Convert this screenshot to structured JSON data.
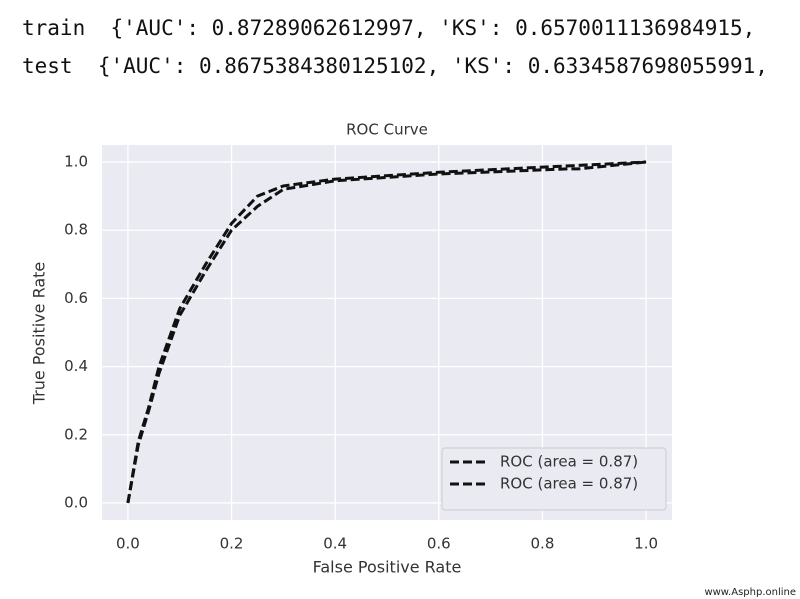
{
  "output_lines": [
    "train  {'AUC': 0.87289062612997, 'KS': 0.6570011136984915,",
    "test  {'AUC': 0.8675384380125102, 'KS': 0.6334587698055991,"
  ],
  "watermark": "www.Asphp.online",
  "chart_data": {
    "type": "line",
    "title": "ROC Curve",
    "xlabel": "False Positive Rate",
    "ylabel": "True Positive Rate",
    "xlim": [
      -0.05,
      1.05
    ],
    "ylim": [
      -0.05,
      1.05
    ],
    "xticks": [
      {
        "value": 0,
        "label": "0.0"
      },
      0.2,
      0.4,
      0.6,
      0.8,
      {
        "value": 1,
        "label": "1.0"
      }
    ],
    "yticks": [
      {
        "value": 0,
        "label": "0.0"
      },
      0.2,
      0.4,
      0.6,
      0.8,
      {
        "value": 1,
        "label": "1.0"
      }
    ],
    "grid": true,
    "legend": "lower right",
    "series": [
      {
        "name": "ROC (area = 0.87)",
        "color": "#111111",
        "dashed": true,
        "x": [
          0,
          0.02,
          0.04,
          0.06,
          0.1,
          0.15,
          0.2,
          0.25,
          0.3,
          0.4,
          0.6,
          0.8,
          1
        ],
        "values": [
          0,
          0.18,
          0.28,
          0.4,
          0.57,
          0.7,
          0.82,
          0.9,
          0.93,
          0.95,
          0.97,
          0.985,
          1
        ]
      },
      {
        "name": "ROC (area = 0.87)",
        "color": "#111111",
        "dashed": true,
        "x": [
          0,
          0.02,
          0.04,
          0.06,
          0.1,
          0.15,
          0.2,
          0.25,
          0.3,
          0.4,
          0.6,
          0.85,
          0.87,
          1
        ],
        "values": [
          0,
          0.17,
          0.27,
          0.38,
          0.55,
          0.68,
          0.8,
          0.87,
          0.92,
          0.945,
          0.965,
          0.98,
          0.98,
          1
        ]
      }
    ]
  }
}
